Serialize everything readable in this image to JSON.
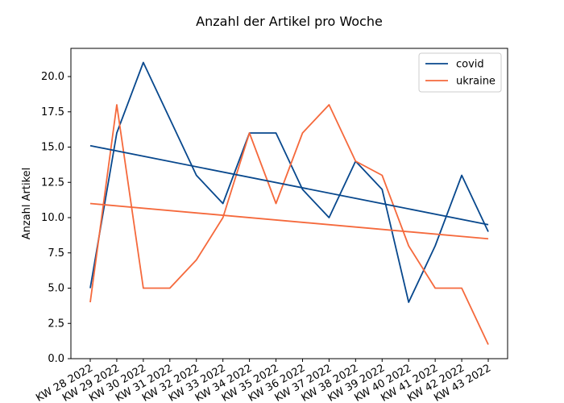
{
  "chart_data": {
    "type": "line",
    "title": "Anzahl der Artikel pro Woche",
    "xlabel": "",
    "ylabel": "Anzahl Artikel",
    "categories": [
      "KW 28 2022",
      "KW 29 2022",
      "KW 30 2022",
      "KW 31 2022",
      "KW 32 2022",
      "KW 33 2022",
      "KW 34 2022",
      "KW 35 2022",
      "KW 36 2022",
      "KW 37 2022",
      "KW 38 2022",
      "KW 39 2022",
      "KW 40 2022",
      "KW 41 2022",
      "KW 42 2022",
      "KW 43 2022"
    ],
    "ylim": [
      0,
      22
    ],
    "yticks": [
      0.0,
      2.5,
      5.0,
      7.5,
      10.0,
      12.5,
      15.0,
      17.5,
      20.0
    ],
    "ytick_labels": [
      "0.0",
      "2.5",
      "5.0",
      "7.5",
      "10.0",
      "12.5",
      "15.0",
      "17.5",
      "20.0"
    ],
    "grid": false,
    "legend_position": "top-right",
    "series": [
      {
        "name": "covid",
        "color": "#08488d",
        "values": [
          5,
          16,
          21,
          17,
          13,
          11,
          16,
          16,
          12,
          10,
          14,
          12,
          4,
          8,
          13,
          9
        ]
      },
      {
        "name": "ukraine",
        "color": "#f5693c",
        "values": [
          4,
          18,
          5,
          5,
          7,
          10,
          16,
          11,
          16,
          18,
          14,
          13,
          8,
          5,
          5,
          1
        ]
      }
    ],
    "trendlines": [
      {
        "series": "covid",
        "color": "#08488d",
        "start": 15.1,
        "end": 9.5
      },
      {
        "series": "ukraine",
        "color": "#f5693c",
        "start": 11.0,
        "end": 8.5
      }
    ]
  }
}
